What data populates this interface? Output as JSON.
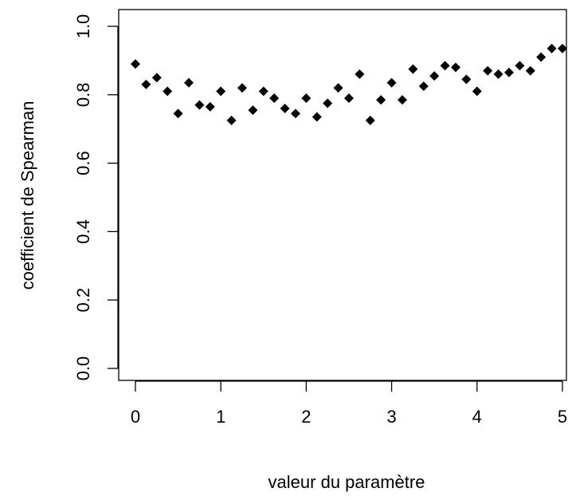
{
  "chart_data": {
    "type": "scatter",
    "title": "",
    "xlabel": "valeur du paramètre",
    "ylabel": "coefficient de Spearman",
    "xlim": [
      -0.2,
      5.02
    ],
    "ylim": [
      0.0,
      1.04
    ],
    "xticks": [
      0,
      1,
      2,
      3,
      4,
      5
    ],
    "xtick_labels": [
      "0",
      "1",
      "2",
      "3",
      "4",
      "5"
    ],
    "yticks": [
      0.0,
      0.2,
      0.4,
      0.6,
      0.8,
      1.0
    ],
    "ytick_labels": [
      "0.0",
      "0.2",
      "0.4",
      "0.6",
      "0.8",
      "1.0"
    ],
    "grid": false,
    "legend": "none",
    "marker": "diamond",
    "color": "#000000",
    "series": [
      {
        "x": [
          0.0,
          0.125,
          0.25,
          0.375,
          0.5,
          0.625,
          0.75,
          0.875,
          1.0,
          1.125,
          1.25,
          1.375,
          1.5,
          1.625,
          1.75,
          1.875,
          2.0,
          2.125,
          2.25,
          2.375,
          2.5,
          2.625,
          2.75,
          2.875,
          3.0,
          3.125,
          3.25,
          3.375,
          3.5,
          3.625,
          3.75,
          3.875,
          4.0,
          4.125,
          4.25,
          4.375,
          4.5,
          4.625,
          4.75,
          4.875,
          5.0
        ],
        "y": [
          0.89,
          0.83,
          0.85,
          0.81,
          0.745,
          0.835,
          0.77,
          0.765,
          0.81,
          0.725,
          0.82,
          0.755,
          0.81,
          0.79,
          0.76,
          0.745,
          0.79,
          0.735,
          0.775,
          0.82,
          0.79,
          0.86,
          0.725,
          0.785,
          0.835,
          0.785,
          0.875,
          0.825,
          0.855,
          0.885,
          0.88,
          0.845,
          0.81,
          0.87,
          0.86,
          0.865,
          0.885,
          0.87,
          0.91,
          0.935,
          0.935
        ]
      }
    ]
  }
}
